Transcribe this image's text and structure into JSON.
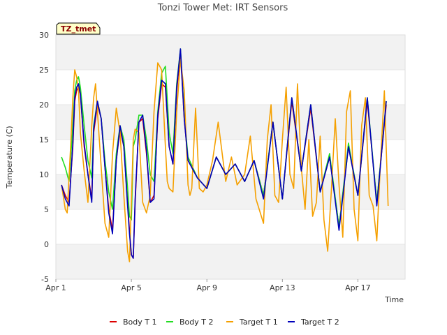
{
  "chart_data": {
    "type": "line",
    "title": "Tonzi Tower Met: IRT Sensors",
    "xlabel": "Time",
    "ylabel": "Temperature (C)",
    "badge": "TZ_tmet",
    "xlim": [
      0,
      18.5
    ],
    "ylim": [
      -5,
      30
    ],
    "grid": "horizontal bands",
    "legend_position": "bottom",
    "y_ticks": [
      -5,
      0,
      5,
      10,
      15,
      20,
      25,
      30
    ],
    "x_ticks": [
      {
        "x": 0,
        "label": "Apr 1"
      },
      {
        "x": 4,
        "label": "Apr 5"
      },
      {
        "x": 8,
        "label": "Apr 9"
      },
      {
        "x": 12,
        "label": "Apr 13"
      },
      {
        "x": 16,
        "label": "Apr 17"
      }
    ],
    "x_unit": "days since Apr 1 00:00",
    "series": [
      {
        "name": "Body T 1",
        "color": "#dd0000",
        "x": [
          0.3,
          0.5,
          0.7,
          0.9,
          1.0,
          1.1,
          1.2,
          1.3,
          1.5,
          1.7,
          1.9,
          2.0,
          2.2,
          2.4,
          2.6,
          2.8,
          3.0,
          3.2,
          3.4,
          3.6,
          3.8,
          3.9,
          4.0,
          4.1,
          4.2,
          4.4,
          4.6,
          4.8,
          5.0,
          5.2,
          5.4,
          5.6,
          5.8,
          6.0,
          6.2,
          6.4,
          6.6,
          6.8,
          7.0,
          7.5,
          8.0,
          8.5,
          9.0,
          9.5,
          10.0,
          10.5,
          11.0,
          11.5,
          12.0,
          12.5,
          13.0,
          13.5,
          14.0,
          14.5,
          15.0,
          15.5,
          16.0,
          16.5,
          17.0,
          17.5
        ],
        "values": [
          8.5,
          7.0,
          6.0,
          14.0,
          20.5,
          22.0,
          22.5,
          21.5,
          14.0,
          10.0,
          6.5,
          16.0,
          20.0,
          18.0,
          11.0,
          5.0,
          2.0,
          12.0,
          16.5,
          14.0,
          6.0,
          2.0,
          -1.5,
          -2.0,
          6.0,
          17.5,
          18.0,
          13.0,
          6.0,
          7.0,
          18.0,
          23.0,
          22.5,
          14.0,
          11.5,
          22.0,
          27.5,
          18.0,
          12.0,
          9.5,
          8.0,
          12.5,
          10.0,
          11.5,
          9.0,
          12.0,
          7.0,
          17.5,
          6.5,
          20.5,
          10.5,
          19.5,
          7.5,
          12.5,
          2.5,
          14.0,
          7.0,
          20.5,
          6.0,
          20.0
        ]
      },
      {
        "name": "Body T 2",
        "color": "#22dd22",
        "x": [
          0.3,
          0.5,
          0.7,
          0.9,
          1.0,
          1.1,
          1.2,
          1.3,
          1.5,
          1.7,
          1.9,
          2.0,
          2.2,
          2.4,
          2.6,
          2.8,
          3.0,
          3.2,
          3.4,
          3.6,
          3.8,
          3.9,
          4.0,
          4.1,
          4.2,
          4.4,
          4.6,
          4.8,
          5.0,
          5.2,
          5.4,
          5.6,
          5.8,
          6.0,
          6.2,
          6.4,
          6.6,
          6.8,
          7.0,
          7.5,
          8.0,
          8.5,
          9.0,
          9.5,
          10.0,
          10.5,
          11.0,
          11.5,
          12.0,
          12.5,
          13.0,
          13.5,
          14.0,
          14.5,
          15.0,
          15.5,
          16.0,
          16.5,
          17.0,
          17.5
        ],
        "values": [
          12.5,
          11.0,
          9.0,
          17.0,
          22.0,
          23.5,
          24.0,
          22.5,
          17.0,
          12.0,
          9.5,
          17.0,
          20.5,
          18.0,
          12.0,
          7.5,
          5.0,
          13.0,
          17.0,
          15.0,
          8.0,
          4.0,
          3.5,
          14.0,
          15.0,
          18.5,
          18.5,
          15.0,
          10.0,
          9.0,
          19.0,
          24.5,
          25.5,
          16.0,
          13.0,
          23.0,
          28.0,
          18.5,
          12.5,
          9.5,
          8.0,
          12.5,
          10.0,
          11.5,
          9.0,
          12.0,
          7.0,
          17.5,
          6.5,
          21.0,
          10.5,
          20.0,
          7.5,
          13.0,
          2.5,
          14.5,
          7.0,
          21.0,
          6.0,
          20.5
        ]
      },
      {
        "name": "Target T 1",
        "color": "#f5a000",
        "x": [
          0.3,
          0.5,
          0.6,
          0.8,
          0.9,
          1.0,
          1.1,
          1.2,
          1.3,
          1.5,
          1.7,
          1.9,
          2.0,
          2.1,
          2.2,
          2.4,
          2.6,
          2.8,
          3.0,
          3.2,
          3.4,
          3.6,
          3.8,
          3.9,
          4.0,
          4.1,
          4.2,
          4.4,
          4.6,
          4.8,
          5.0,
          5.2,
          5.4,
          5.6,
          5.8,
          5.9,
          6.0,
          6.2,
          6.4,
          6.6,
          6.8,
          7.0,
          7.1,
          7.2,
          7.4,
          7.6,
          7.8,
          8.0,
          8.3,
          8.6,
          9.0,
          9.3,
          9.6,
          10.0,
          10.3,
          10.6,
          11.0,
          11.2,
          11.4,
          11.6,
          11.8,
          12.0,
          12.2,
          12.4,
          12.6,
          12.8,
          13.0,
          13.2,
          13.4,
          13.6,
          13.8,
          14.0,
          14.2,
          14.4,
          14.6,
          14.8,
          15.0,
          15.2,
          15.4,
          15.6,
          15.8,
          16.0,
          16.2,
          16.4,
          16.6,
          16.8,
          17.0,
          17.2,
          17.4,
          17.6
        ],
        "values": [
          8.5,
          5.0,
          4.5,
          15.0,
          21.0,
          25.0,
          24.0,
          22.0,
          16.0,
          10.5,
          6.0,
          17.0,
          21.0,
          23.0,
          19.0,
          11.0,
          3.0,
          1.0,
          13.0,
          19.5,
          16.0,
          7.0,
          -1.0,
          -2.5,
          6.0,
          15.0,
          16.5,
          16.0,
          6.0,
          4.5,
          7.0,
          19.0,
          26.0,
          25.0,
          14.0,
          9.0,
          8.0,
          7.5,
          19.0,
          26.5,
          22.0,
          8.5,
          7.0,
          8.0,
          19.5,
          8.0,
          7.5,
          8.5,
          12.0,
          17.5,
          9.0,
          12.5,
          8.5,
          10.0,
          15.5,
          6.5,
          3.0,
          15.0,
          20.0,
          7.0,
          6.0,
          15.0,
          22.5,
          10.0,
          8.0,
          23.0,
          11.0,
          5.0,
          15.0,
          4.0,
          6.0,
          15.5,
          3.5,
          -1.0,
          8.0,
          18.0,
          8.5,
          1.0,
          19.0,
          22.0,
          5.0,
          0.5,
          17.0,
          21.0,
          7.0,
          5.5,
          0.5,
          12.0,
          22.0,
          5.5
        ]
      },
      {
        "name": "Target T 2",
        "color": "#0000bb",
        "x": [
          0.3,
          0.5,
          0.7,
          0.9,
          1.0,
          1.1,
          1.2,
          1.3,
          1.5,
          1.7,
          1.9,
          2.0,
          2.2,
          2.4,
          2.6,
          2.8,
          3.0,
          3.2,
          3.4,
          3.6,
          3.8,
          3.9,
          4.0,
          4.1,
          4.2,
          4.4,
          4.6,
          4.8,
          5.0,
          5.2,
          5.4,
          5.6,
          5.8,
          6.0,
          6.2,
          6.4,
          6.6,
          6.8,
          7.0,
          7.5,
          8.0,
          8.5,
          9.0,
          9.5,
          10.0,
          10.5,
          11.0,
          11.5,
          12.0,
          12.5,
          13.0,
          13.5,
          14.0,
          14.5,
          15.0,
          15.5,
          16.0,
          16.5,
          17.0,
          17.5
        ],
        "values": [
          8.5,
          6.5,
          5.5,
          14.5,
          21.0,
          22.5,
          23.0,
          21.5,
          14.5,
          10.0,
          6.0,
          16.5,
          20.5,
          18.0,
          11.0,
          4.5,
          1.5,
          12.0,
          17.0,
          14.0,
          5.5,
          1.5,
          -1.5,
          -2.0,
          6.5,
          17.5,
          18.5,
          13.5,
          6.0,
          6.5,
          18.5,
          23.5,
          23.0,
          14.0,
          11.5,
          22.5,
          28.0,
          18.0,
          12.0,
          9.5,
          8.0,
          12.5,
          10.0,
          11.5,
          9.0,
          12.0,
          6.5,
          17.5,
          6.5,
          21.0,
          10.5,
          20.0,
          7.5,
          12.5,
          2.0,
          14.0,
          7.0,
          21.0,
          5.5,
          20.5
        ]
      }
    ]
  }
}
